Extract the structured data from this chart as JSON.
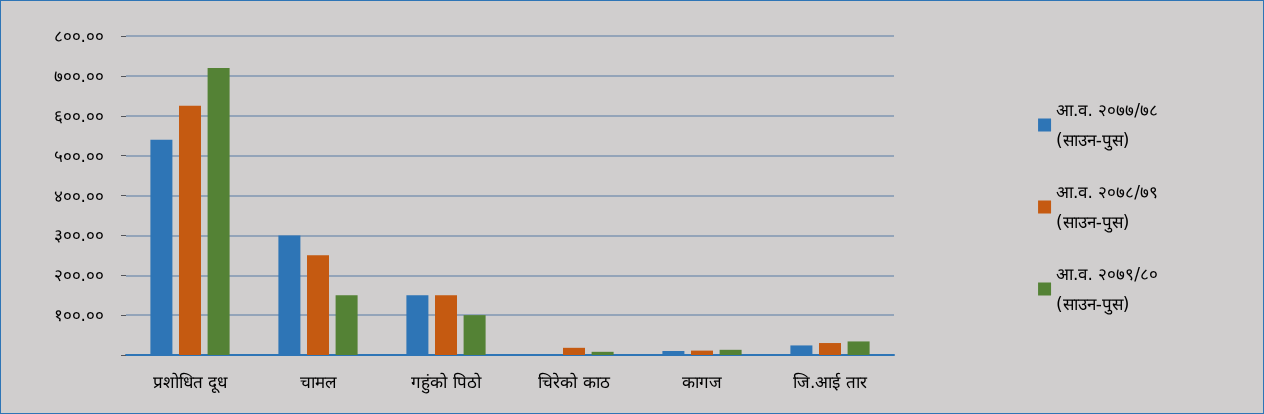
{
  "chart_data": {
    "type": "bar",
    "categories": [
      "प्रशोधित दूध",
      "चामल",
      "गहुंको पिठो",
      "चिरेको काठ",
      "कागज",
      "जि.आई तार"
    ],
    "series": [
      {
        "name": "आ.व. २०७७/७८\n(साउन-पुस)",
        "color": "#2e75b6",
        "values": [
          540,
          300,
          150,
          0,
          10,
          24
        ]
      },
      {
        "name": "आ.व. २०७८/७९\n(साउन-पुस)",
        "color": "#c55a11",
        "values": [
          625,
          250,
          150,
          18,
          11,
          30
        ]
      },
      {
        "name": "आ.व. २०७९/८०\n(साउन-पुस)",
        "color": "#548235",
        "values": [
          720,
          150,
          100,
          8,
          13,
          34
        ]
      }
    ],
    "ylim": [
      0,
      800
    ],
    "yticks": [
      {
        "value": 0,
        "label": null
      },
      {
        "value": 100,
        "label": "१००.००"
      },
      {
        "value": 200,
        "label": "२००.००"
      },
      {
        "value": 300,
        "label": "३००.००"
      },
      {
        "value": 400,
        "label": "४००.००"
      },
      {
        "value": 500,
        "label": "५००.००"
      },
      {
        "value": 600,
        "label": "६००.००"
      },
      {
        "value": 700,
        "label": "७००.००"
      },
      {
        "value": 800,
        "label": "८००.००"
      }
    ],
    "grid": "y",
    "legend": "right"
  }
}
